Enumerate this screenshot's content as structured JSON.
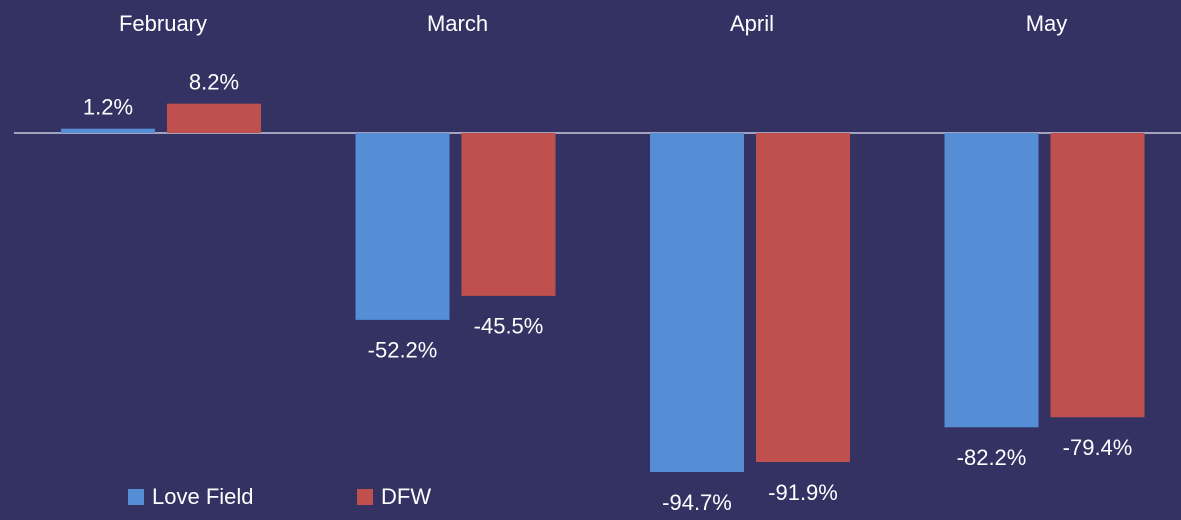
{
  "chart_data": {
    "type": "bar",
    "categories": [
      "February",
      "March",
      "April",
      "May"
    ],
    "series": [
      {
        "name": "Love Field",
        "color": "#558ed5",
        "values": [
          1.2,
          -52.2,
          -94.7,
          -82.2
        ],
        "value_labels": [
          "1.2%",
          "-52.2%",
          "-94.7%",
          "-82.2%"
        ]
      },
      {
        "name": "DFW",
        "color": "#c0504d",
        "values": [
          8.2,
          -45.5,
          -91.9,
          -79.4
        ],
        "value_labels": [
          "8.2%",
          "-45.5%",
          "-91.9%",
          "-79.4%"
        ]
      }
    ],
    "legend": "bottom-left"
  }
}
